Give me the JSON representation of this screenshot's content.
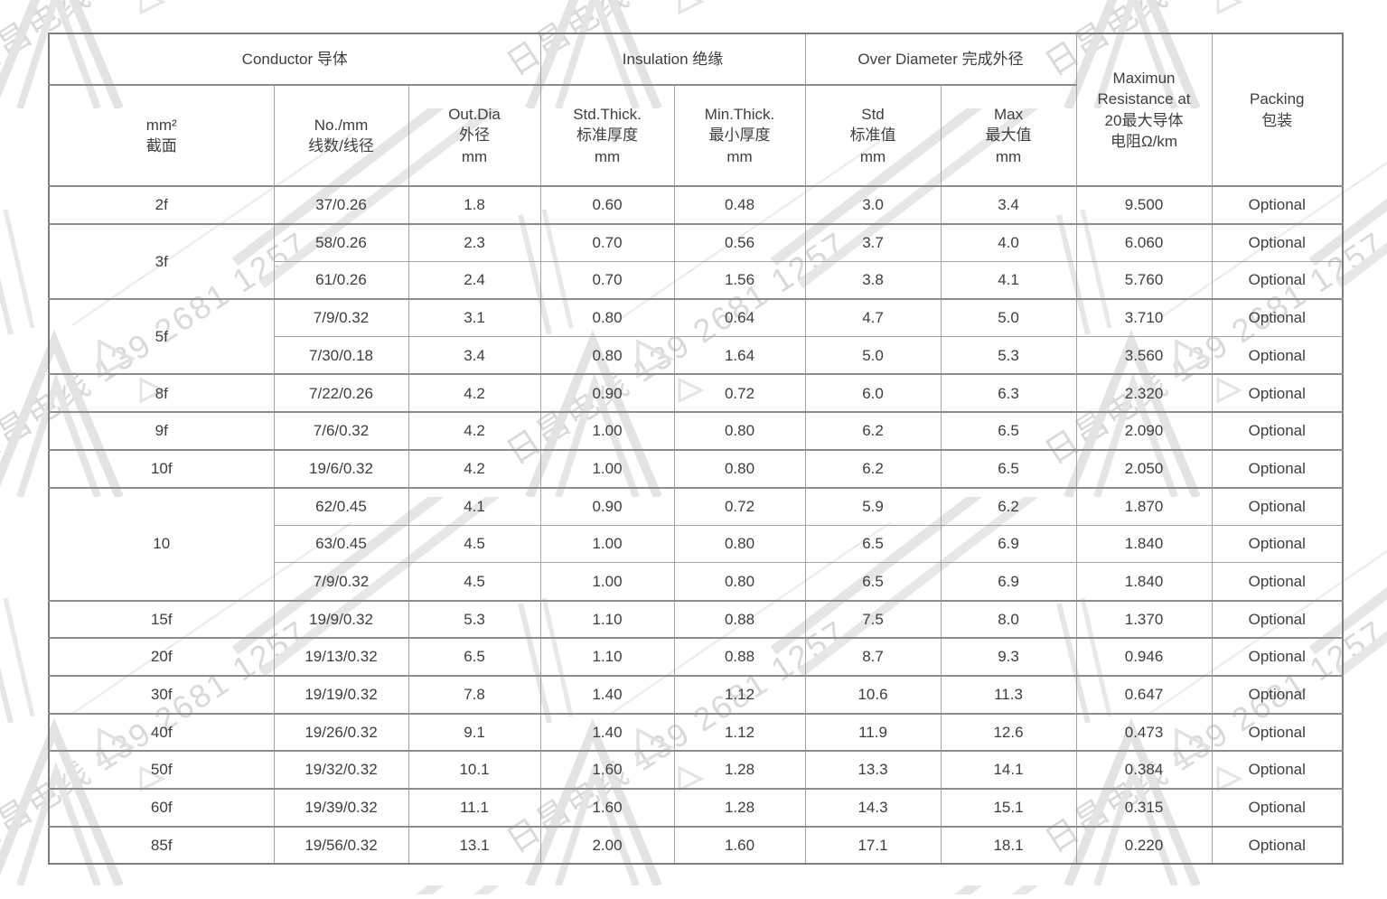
{
  "watermark": {
    "text": "日昌电线 139 2681 1257",
    "text_color": "#d9d9d9",
    "shape_color": "#e3e3e3",
    "line_color": "#e7e7e7"
  },
  "table": {
    "header_groups": [
      {
        "label": "Conductor 导体",
        "colspan": 3
      },
      {
        "label": "Insulation 绝缘",
        "colspan": 2
      },
      {
        "label": "Over Diameter 完成外径",
        "colspan": 2
      }
    ],
    "sub_headers": [
      "mm²\n截面",
      "No./mm\n线数/线径",
      "Out.Dia\n外径\nmm",
      "Std.Thick.\n标准厚度\nmm",
      "Min.Thick.\n最小厚度\nmm",
      "Std\n标准值\nmm",
      "Max\n最大值\nmm"
    ],
    "span_headers": [
      "Maximun\nResistance at\n20最大导体\n电阻Ω/km",
      "Packing\n包装"
    ],
    "groups": [
      {
        "size": "2f",
        "rows": [
          [
            "37/0.26",
            "1.8",
            "0.60",
            "0.48",
            "3.0",
            "3.4",
            "9.500",
            "Optional"
          ]
        ]
      },
      {
        "size": "3f",
        "rows": [
          [
            "58/0.26",
            "2.3",
            "0.70",
            "0.56",
            "3.7",
            "4.0",
            "6.060",
            "Optional"
          ],
          [
            "61/0.26",
            "2.4",
            "0.70",
            "1.56",
            "3.8",
            "4.1",
            "5.760",
            "Optional"
          ]
        ]
      },
      {
        "size": "5f",
        "rows": [
          [
            "7/9/0.32",
            "3.1",
            "0.80",
            "0.64",
            "4.7",
            "5.0",
            "3.710",
            "Optional"
          ],
          [
            "7/30/0.18",
            "3.4",
            "0.80",
            "1.64",
            "5.0",
            "5.3",
            "3.560",
            "Optional"
          ]
        ]
      },
      {
        "size": "8f",
        "rows": [
          [
            "7/22/0.26",
            "4.2",
            "0.90",
            "0.72",
            "6.0",
            "6.3",
            "2.320",
            "Optional"
          ]
        ]
      },
      {
        "size": "9f",
        "rows": [
          [
            "7/6/0.32",
            "4.2",
            "1.00",
            "0.80",
            "6.2",
            "6.5",
            "2.090",
            "Optional"
          ]
        ]
      },
      {
        "size": "10f",
        "rows": [
          [
            "19/6/0.32",
            "4.2",
            "1.00",
            "0.80",
            "6.2",
            "6.5",
            "2.050",
            "Optional"
          ]
        ]
      },
      {
        "size": "10",
        "rows": [
          [
            "62/0.45",
            "4.1",
            "0.90",
            "0.72",
            "5.9",
            "6.2",
            "1.870",
            "Optional"
          ],
          [
            "63/0.45",
            "4.5",
            "1.00",
            "0.80",
            "6.5",
            "6.9",
            "1.840",
            "Optional"
          ],
          [
            "7/9/0.32",
            "4.5",
            "1.00",
            "0.80",
            "6.5",
            "6.9",
            "1.840",
            "Optional"
          ]
        ]
      },
      {
        "size": "15f",
        "rows": [
          [
            "19/9/0.32",
            "5.3",
            "1.10",
            "0.88",
            "7.5",
            "8.0",
            "1.370",
            "Optional"
          ]
        ]
      },
      {
        "size": "20f",
        "rows": [
          [
            "19/13/0.32",
            "6.5",
            "1.10",
            "0.88",
            "8.7",
            "9.3",
            "0.946",
            "Optional"
          ]
        ]
      },
      {
        "size": "30f",
        "rows": [
          [
            "19/19/0.32",
            "7.8",
            "1.40",
            "1.12",
            "10.6",
            "11.3",
            "0.647",
            "Optional"
          ]
        ]
      },
      {
        "size": "40f",
        "rows": [
          [
            "19/26/0.32",
            "9.1",
            "1.40",
            "1.12",
            "11.9",
            "12.6",
            "0.473",
            "Optional"
          ]
        ]
      },
      {
        "size": "50f",
        "rows": [
          [
            "19/32/0.32",
            "10.1",
            "1.60",
            "1.28",
            "13.3",
            "14.1",
            "0.384",
            "Optional"
          ]
        ]
      },
      {
        "size": "60f",
        "rows": [
          [
            "19/39/0.32",
            "11.1",
            "1.60",
            "1.28",
            "14.3",
            "15.1",
            "0.315",
            "Optional"
          ]
        ]
      },
      {
        "size": "85f",
        "rows": [
          [
            "19/56/0.32",
            "13.1",
            "2.00",
            "1.60",
            "17.1",
            "18.1",
            "0.220",
            "Optional"
          ]
        ]
      }
    ]
  }
}
